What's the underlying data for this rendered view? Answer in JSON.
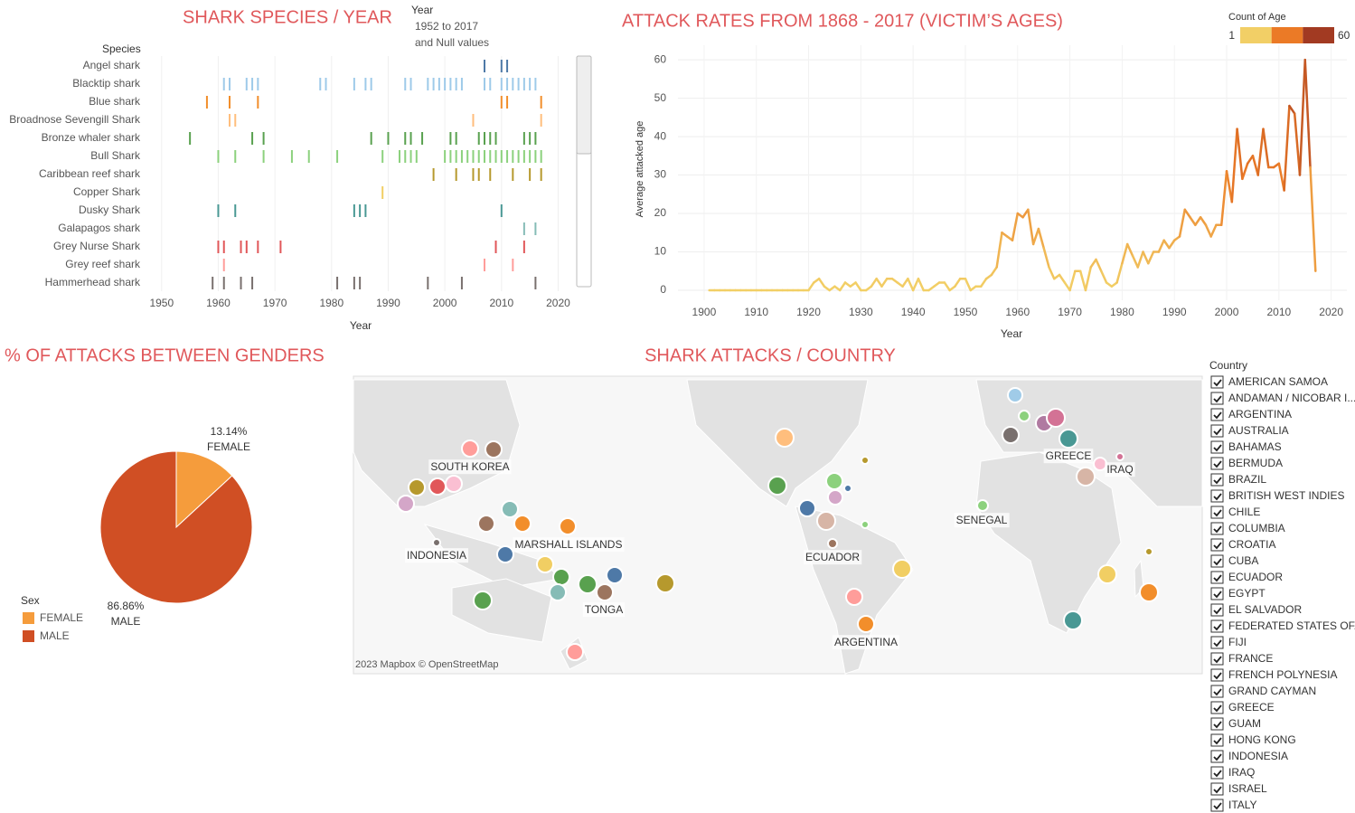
{
  "chart_data": [
    {
      "type": "strip",
      "title": "SHARK SPECIES / YEAR",
      "y_label": "Species",
      "x_label": "Year",
      "filter": {
        "title": "Year",
        "lines": [
          "1952 to 2017",
          "and Null values"
        ]
      },
      "xlim": [
        1947,
        2022
      ],
      "xticks": [
        1950,
        1960,
        1970,
        1980,
        1990,
        2000,
        2010,
        2020
      ],
      "series": [
        {
          "name": "Angel shark",
          "color": "#4e79a7",
          "x": [
            2007,
            2010,
            2011
          ]
        },
        {
          "name": "Blacktip shark",
          "color": "#9ecae9",
          "x": [
            1961,
            1962,
            1965,
            1966,
            1967,
            1978,
            1979,
            1984,
            1986,
            1987,
            1993,
            1994,
            1997,
            1998,
            1999,
            2000,
            2001,
            2002,
            2003,
            2007,
            2008,
            2010,
            2011,
            2012,
            2013,
            2014,
            2015,
            2016
          ]
        },
        {
          "name": "Blue shark",
          "color": "#f28e2b",
          "x": [
            1958,
            1962,
            1967,
            2010,
            2011,
            2017
          ]
        },
        {
          "name": "Broadnose Sevengill Shark",
          "color": "#ffbe7d",
          "x": [
            1962,
            1963,
            2005,
            2017
          ]
        },
        {
          "name": "Bronze whaler shark",
          "color": "#59a14f",
          "x": [
            1955,
            1966,
            1968,
            1987,
            1990,
            1993,
            1994,
            1996,
            2001,
            2002,
            2006,
            2007,
            2008,
            2009,
            2014,
            2015,
            2016
          ]
        },
        {
          "name": "Bull Shark",
          "color": "#8cd17d",
          "x": [
            1960,
            1963,
            1968,
            1973,
            1976,
            1981,
            1989,
            1992,
            1993,
            1994,
            1995,
            2000,
            2001,
            2002,
            2003,
            2004,
            2005,
            2006,
            2007,
            2008,
            2009,
            2010,
            2011,
            2012,
            2013,
            2014,
            2015,
            2016,
            2017
          ]
        },
        {
          "name": "Caribbean reef shark",
          "color": "#b6992d",
          "x": [
            1998,
            2002,
            2005,
            2006,
            2008,
            2012,
            2015,
            2017
          ]
        },
        {
          "name": "Copper Shark",
          "color": "#f1ce63",
          "x": [
            1989
          ]
        },
        {
          "name": "Dusky Shark",
          "color": "#499894",
          "x": [
            1960,
            1963,
            1984,
            1985,
            1986,
            2010
          ]
        },
        {
          "name": "Galapagos shark",
          "color": "#86bcb6",
          "x": [
            2014,
            2016
          ]
        },
        {
          "name": "Grey Nurse Shark",
          "color": "#e15759",
          "x": [
            1960,
            1961,
            1964,
            1965,
            1967,
            1971,
            2009,
            2014
          ]
        },
        {
          "name": "Grey reef shark",
          "color": "#ff9d9a",
          "x": [
            1961,
            2007,
            2012
          ]
        },
        {
          "name": "Hammerhead shark",
          "color": "#79706e",
          "x": [
            1959,
            1961,
            1964,
            1966,
            1981,
            1984,
            1985,
            1997,
            2003,
            2016
          ]
        }
      ]
    },
    {
      "type": "line",
      "title": "ATTACK RATES FROM 1868 - 2017 (VICTIM’S AGES)",
      "x_label": "Year",
      "y_label": "Average attacked age",
      "xlim": [
        1895,
        2023
      ],
      "ylim": [
        -2.6,
        63.8
      ],
      "xticks": [
        1900,
        1910,
        1920,
        1930,
        1940,
        1950,
        1960,
        1970,
        1980,
        1990,
        2000,
        2010,
        2020
      ],
      "yticks": [
        0,
        10,
        20,
        30,
        40,
        50,
        60
      ],
      "grid": true,
      "legend": {
        "title": "Count of Age",
        "min": 1,
        "max": 60,
        "colors": [
          "#f2cf66",
          "#eb7a26",
          "#a23a22"
        ]
      },
      "x": [
        1901,
        1902,
        1903,
        1904,
        1905,
        1906,
        1907,
        1908,
        1909,
        1910,
        1911,
        1912,
        1913,
        1914,
        1915,
        1916,
        1917,
        1918,
        1919,
        1920,
        1921,
        1922,
        1923,
        1924,
        1925,
        1926,
        1927,
        1928,
        1929,
        1930,
        1931,
        1932,
        1933,
        1934,
        1935,
        1936,
        1937,
        1938,
        1939,
        1940,
        1941,
        1942,
        1943,
        1944,
        1945,
        1946,
        1947,
        1948,
        1949,
        1950,
        1951,
        1952,
        1953,
        1954,
        1955,
        1956,
        1957,
        1958,
        1959,
        1960,
        1961,
        1962,
        1963,
        1964,
        1965,
        1966,
        1967,
        1968,
        1969,
        1970,
        1971,
        1972,
        1973,
        1974,
        1975,
        1976,
        1977,
        1978,
        1979,
        1980,
        1981,
        1982,
        1983,
        1984,
        1985,
        1986,
        1987,
        1988,
        1989,
        1990,
        1991,
        1992,
        1993,
        1994,
        1995,
        1996,
        1997,
        1998,
        1999,
        2000,
        2001,
        2002,
        2003,
        2004,
        2005,
        2006,
        2007,
        2008,
        2009,
        2010,
        2011,
        2012,
        2013,
        2014,
        2015,
        2016,
        2017
      ],
      "values": [
        0,
        0,
        0,
        0,
        0,
        0,
        0,
        0,
        0,
        0,
        0,
        0,
        0,
        0,
        0,
        0,
        0,
        0,
        0,
        0,
        2,
        3,
        1,
        0,
        1,
        0,
        2,
        1,
        2,
        0,
        0,
        1,
        3,
        1,
        3,
        3,
        2,
        1,
        3,
        0,
        3,
        0,
        0,
        1,
        2,
        2,
        0,
        1,
        3,
        3,
        0,
        1,
        1,
        3,
        4,
        6,
        15,
        14,
        13,
        20,
        19,
        21,
        12,
        16,
        11,
        6,
        3,
        4,
        2,
        0,
        5,
        5,
        0,
        6,
        8,
        5,
        2,
        1,
        2,
        7,
        12,
        9,
        6,
        10,
        7,
        10,
        10,
        13,
        11,
        13,
        14,
        21,
        19,
        17,
        19,
        17,
        14,
        17,
        17,
        31,
        23,
        42,
        29,
        33,
        35,
        30,
        42,
        32,
        32,
        33,
        26,
        48,
        46,
        30,
        60,
        32,
        5
      ]
    },
    {
      "type": "pie",
      "title": "% OF ATTACKS BETWEEN GENDERS",
      "legend_title": "Sex",
      "categories": [
        "FEMALE",
        "MALE"
      ],
      "values": [
        13.14,
        86.86
      ],
      "value_labels": [
        "13.14%",
        "86.86%"
      ],
      "colors": [
        "#f59c3c",
        "#d04f24"
      ]
    }
  ],
  "map": {
    "title": "SHARK ATTACKS / COUNTRY",
    "attribution": "2023 Mapbox © OpenStreetMap",
    "labels": [
      "SOUTH KOREA",
      "INDONESIA",
      "MARSHALL ISLANDS",
      "TONGA",
      "ECUADOR",
      "ARGENTINA",
      "SENEGAL",
      "GREECE",
      "IRAQ"
    ],
    "filter_title": "Country",
    "countries": [
      "AMERICAN SAMOA",
      "ANDAMAN / NICOBAR I...",
      "ARGENTINA",
      "AUSTRALIA",
      "BAHAMAS",
      "BERMUDA",
      "BRAZIL",
      "BRITISH WEST INDIES",
      "CHILE",
      "COLUMBIA",
      "CROATIA",
      "CUBA",
      "ECUADOR",
      "EGYPT",
      "EL SALVADOR",
      "FEDERATED STATES OF...",
      "FIJI",
      "FRANCE",
      "FRENCH POLYNESIA",
      "GRAND CAYMAN",
      "GREECE",
      "GUAM",
      "HONG KONG",
      "INDONESIA",
      "IRAQ",
      "ISRAEL",
      "ITALY"
    ]
  }
}
